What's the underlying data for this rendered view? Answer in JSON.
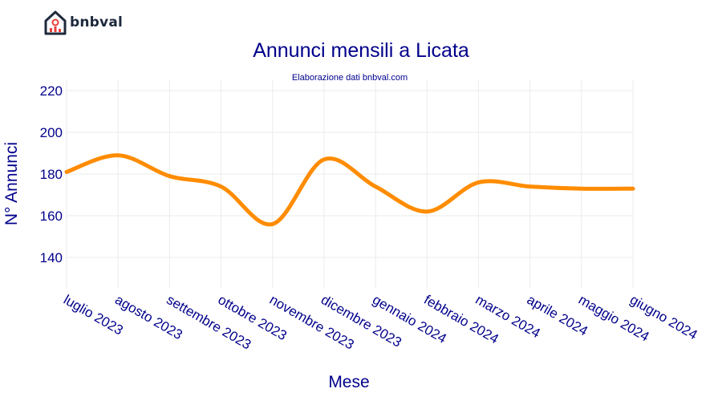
{
  "brand": {
    "name": "bnbval",
    "logo_icon": "house-chart-icon",
    "logo_color": "#e8403a"
  },
  "chart_data": {
    "type": "line",
    "title": "Annunci mensili a Licata",
    "subtitle": "Elaborazione dati bnbval.com",
    "xlabel": "Mese",
    "ylabel": "N° Annunci",
    "categories": [
      "luglio 2023",
      "agosto 2023",
      "settembre 2023",
      "ottobre 2023",
      "novembre 2023",
      "dicembre 2023",
      "gennaio 2024",
      "febbraio 2024",
      "marzo 2024",
      "aprile 2024",
      "maggio 2024",
      "giugno 2024"
    ],
    "series": [
      {
        "values": [
          181,
          189,
          179,
          174,
          156,
          187,
          174,
          162,
          176,
          174,
          173,
          173
        ],
        "color": "#ff8c00"
      }
    ],
    "ylim": [
      125,
      225
    ],
    "yticks": [
      140,
      160,
      180,
      200,
      220
    ],
    "grid": true,
    "title_color": "#00008b",
    "label_color": "#00008b"
  }
}
